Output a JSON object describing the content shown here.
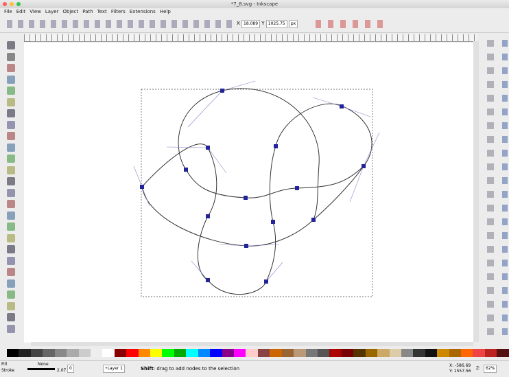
{
  "window": {
    "title": "*7_8.svg - Inkscape"
  },
  "menu": [
    "File",
    "Edit",
    "View",
    "Layer",
    "Object",
    "Path",
    "Text",
    "Filters",
    "Extensions",
    "Help"
  ],
  "toolbar": {
    "x_label": "X",
    "x_value": "18.089",
    "y_label": "Y",
    "y_value": "1025.75",
    "unit": "px"
  },
  "status": {
    "fill_label": "Fill",
    "stroke_label": "Stroke",
    "fill_value": "None",
    "stroke_width": "2.07",
    "opacity": "0",
    "layer": "•Layer 1",
    "message_key": "Shift",
    "message": ": drag to add nodes to the selection",
    "x_coord": "X: -586.69",
    "y_coord": "Y: 1557.56",
    "zoom_label": "Z:",
    "zoom": "62%"
  }
}
